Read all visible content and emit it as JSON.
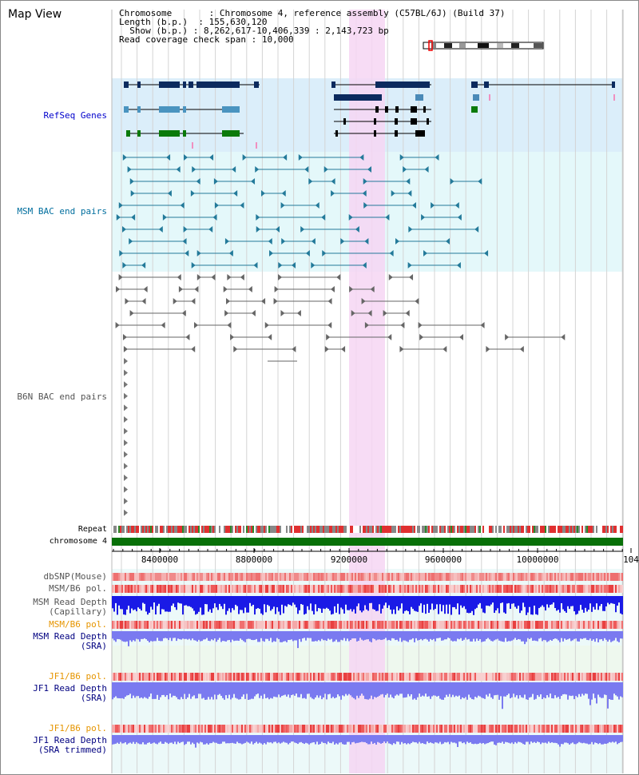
{
  "header": {
    "title": "Map View",
    "chromosome_label": "Chromosome",
    "chromosome_value": "Chromosome 4, reference assembly (C57BL/6J) (Build 37)",
    "length_label": "Length (b.p.)",
    "length_value": "155,630,120",
    "show_label": "Show (b.p.)",
    "show_value": "8,262,617-10,406,339 : 2,143,723 bp",
    "coverage_label": "Read coverage check span",
    "coverage_value": "10,000"
  },
  "tracks": {
    "refseq": "RefSeq Genes",
    "msm_bac": "MSM BAC end pairs",
    "b6n_bac": "B6N BAC end pairs",
    "repeat": "Repeat",
    "chromosome": "chromosome 4",
    "dbsnp": "dbSNP(Mouse)",
    "msm_b6_pol_1": "MSM/B6 pol.",
    "msm_depth_cap_1": "MSM Read Depth",
    "msm_depth_cap_2": "(Capillary)",
    "msm_b6_pol_2": "MSM/B6 pol.",
    "msm_depth_sra_1": "MSM Read Depth",
    "msm_depth_sra_2": "(SRA)",
    "jf1_b6_pol_1": "JF1/B6 pol.",
    "jf1_depth_sra_1": "JF1 Read Depth",
    "jf1_depth_sra_2": "(SRA)",
    "jf1_b6_pol_2": "JF1/B6 pol.",
    "jf1_depth_trim_1": "JF1 Read Depth",
    "jf1_depth_trim_2": "(SRA trimmed)"
  },
  "axis": {
    "ticks": [
      "8400000",
      "8800000",
      "9200000",
      "9600000",
      "10000000",
      "104"
    ]
  },
  "colors": {
    "refseq_bg": "#dbeefa",
    "msm_bg": "#e4f8fa",
    "highlight": "#f6d6f3",
    "chromosome": "#087008",
    "depth_blue": "#1a1ae6",
    "depth_light": "#7a7af0"
  }
}
